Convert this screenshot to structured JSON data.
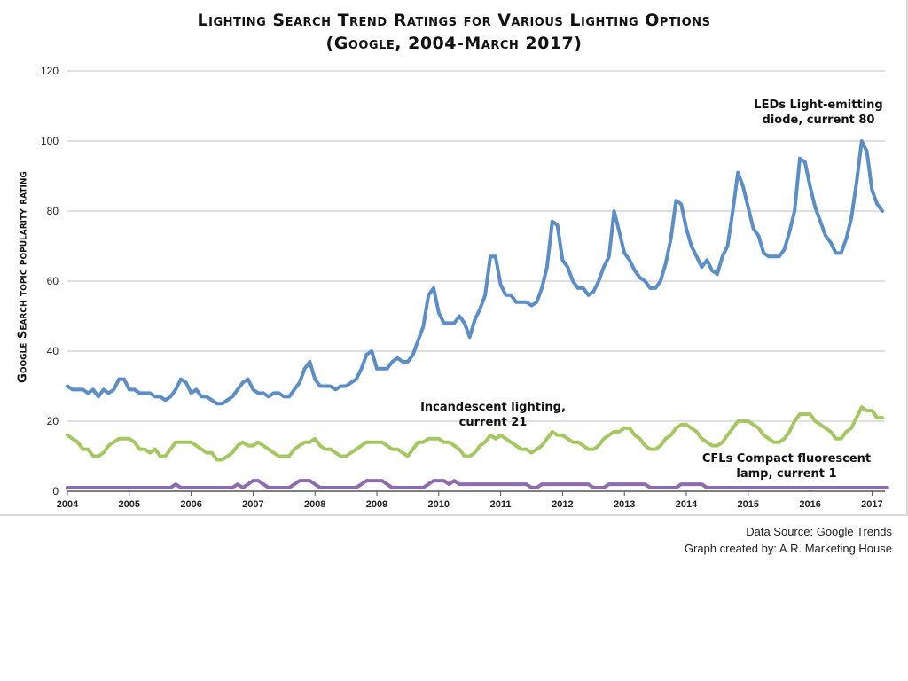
{
  "chart_data": {
    "type": "line",
    "title_line1": "Lighting Search Trend Ratings for Various Lighting Options",
    "title_line2": "(Google, 2004-March 2017)",
    "ylabel": "Google Search topic popularity rating",
    "xlabel": "",
    "ylim": [
      0,
      120
    ],
    "yticks": [
      0,
      20,
      40,
      60,
      80,
      100,
      120
    ],
    "xticks": [
      "2004",
      "2005",
      "2006",
      "2007",
      "2008",
      "2009",
      "2010",
      "2011",
      "2012",
      "2013",
      "2014",
      "2015",
      "2016",
      "2017"
    ],
    "x_start_year": 2004,
    "grid": true,
    "series": [
      {
        "name": "LEDs Light-emitting diode, current 80",
        "label_lines": [
          "LEDs Light-emitting",
          "diode, current 80"
        ],
        "color": "#5b8ec7",
        "values": [
          30,
          29,
          29,
          29,
          28,
          29,
          27,
          29,
          28,
          29,
          32,
          32,
          29,
          29,
          28,
          28,
          28,
          27,
          27,
          26,
          27,
          29,
          32,
          31,
          28,
          29,
          27,
          27,
          26,
          25,
          25,
          26,
          27,
          29,
          31,
          32,
          29,
          28,
          28,
          27,
          28,
          28,
          27,
          27,
          29,
          31,
          35,
          37,
          32,
          30,
          30,
          30,
          29,
          30,
          30,
          31,
          32,
          35,
          39,
          40,
          35,
          35,
          35,
          37,
          38,
          37,
          37,
          39,
          43,
          47,
          56,
          58,
          51,
          48,
          48,
          48,
          50,
          48,
          44,
          49,
          52,
          56,
          67,
          67,
          59,
          56,
          56,
          54,
          54,
          54,
          53,
          54,
          58,
          64,
          77,
          76,
          66,
          64,
          60,
          58,
          58,
          56,
          57,
          60,
          64,
          67,
          80,
          74,
          68,
          66,
          63,
          61,
          60,
          58,
          58,
          60,
          65,
          72,
          83,
          82,
          75,
          70,
          67,
          64,
          66,
          63,
          62,
          67,
          70,
          80,
          91,
          87,
          81,
          75,
          73,
          68,
          67,
          67,
          67,
          69,
          74,
          80,
          95,
          94,
          87,
          81,
          77,
          73,
          71,
          68,
          68,
          72,
          78,
          88,
          100,
          97,
          86,
          82,
          80
        ]
      },
      {
        "name": "Incandescent lighting, current 21",
        "label_lines": [
          "Incandescent lighting,",
          "current 21"
        ],
        "color": "#a5c760",
        "values": [
          16,
          15,
          14,
          12,
          12,
          10,
          10,
          11,
          13,
          14,
          15,
          15,
          15,
          14,
          12,
          12,
          11,
          12,
          10,
          10,
          12,
          14,
          14,
          14,
          14,
          13,
          12,
          11,
          11,
          9,
          9,
          10,
          11,
          13,
          14,
          13,
          13,
          14,
          13,
          12,
          11,
          10,
          10,
          10,
          12,
          13,
          14,
          14,
          15,
          13,
          12,
          12,
          11,
          10,
          10,
          11,
          12,
          13,
          14,
          14,
          14,
          14,
          13,
          12,
          12,
          11,
          10,
          12,
          14,
          14,
          15,
          15,
          15,
          14,
          14,
          13,
          12,
          10,
          10,
          11,
          13,
          14,
          16,
          15,
          16,
          15,
          14,
          13,
          12,
          12,
          11,
          12,
          13,
          15,
          17,
          16,
          16,
          15,
          14,
          14,
          13,
          12,
          12,
          13,
          15,
          16,
          17,
          17,
          18,
          18,
          16,
          15,
          13,
          12,
          12,
          13,
          15,
          16,
          18,
          19,
          19,
          18,
          17,
          15,
          14,
          13,
          13,
          14,
          16,
          18,
          20,
          20,
          20,
          19,
          18,
          16,
          15,
          14,
          14,
          15,
          17,
          20,
          22,
          22,
          22,
          20,
          19,
          18,
          17,
          15,
          15,
          17,
          18,
          21,
          24,
          23,
          23,
          21,
          21
        ]
      },
      {
        "name": "CFLs Compact fluorescent lamp, current 1",
        "label_lines": [
          "CFLs Compact fluorescent",
          "lamp, current 1"
        ],
        "color": "#8e6bb0",
        "values": [
          1,
          1,
          1,
          1,
          1,
          1,
          1,
          1,
          1,
          1,
          1,
          1,
          1,
          1,
          1,
          1,
          1,
          1,
          1,
          1,
          1,
          1,
          1,
          1,
          1,
          1,
          1,
          1,
          1,
          1,
          1,
          1,
          1,
          1,
          1,
          1,
          1,
          1,
          1,
          1,
          1,
          1,
          1,
          1,
          1,
          1,
          1,
          1,
          1,
          1,
          1,
          1,
          1,
          1,
          1,
          1,
          1,
          1,
          1,
          1,
          1,
          1,
          1,
          1,
          1,
          1,
          1,
          1,
          1,
          1,
          1,
          1,
          1,
          1,
          1,
          1,
          1,
          1,
          1,
          1,
          1,
          1,
          1,
          1,
          1,
          1,
          1,
          1,
          1,
          1,
          1,
          1,
          1,
          1,
          1,
          1,
          1,
          1,
          1,
          1,
          1,
          1,
          1,
          1,
          1,
          1,
          1,
          1,
          1,
          1,
          1,
          1,
          1,
          1,
          1,
          1,
          1,
          1,
          1,
          1,
          1,
          1,
          1,
          1,
          1,
          1,
          1,
          1,
          1,
          1,
          1,
          1,
          1,
          1,
          1,
          1,
          1,
          1,
          1,
          1,
          1,
          1,
          1,
          1,
          1,
          1,
          1,
          1,
          1,
          1,
          1,
          1,
          1,
          1,
          1,
          1,
          1,
          1,
          1,
          1
        ],
        "bumps": [
          [
            21,
            2
          ],
          [
            22,
            1
          ],
          [
            33,
            2
          ],
          [
            34,
            1
          ],
          [
            35,
            2
          ],
          [
            36,
            3
          ],
          [
            37,
            3
          ],
          [
            38,
            2
          ],
          [
            44,
            2
          ],
          [
            45,
            3
          ],
          [
            46,
            3
          ],
          [
            47,
            3
          ],
          [
            48,
            2
          ],
          [
            57,
            2
          ],
          [
            58,
            3
          ],
          [
            59,
            3
          ],
          [
            60,
            3
          ],
          [
            61,
            3
          ],
          [
            62,
            2
          ],
          [
            70,
            2
          ],
          [
            71,
            3
          ],
          [
            72,
            3
          ],
          [
            73,
            3
          ],
          [
            74,
            2
          ],
          [
            75,
            3
          ],
          [
            76,
            2
          ],
          [
            77,
            2
          ],
          [
            78,
            2
          ],
          [
            79,
            2
          ],
          [
            80,
            2
          ],
          [
            81,
            2
          ],
          [
            82,
            2
          ],
          [
            83,
            2
          ],
          [
            84,
            2
          ],
          [
            85,
            2
          ],
          [
            86,
            2
          ],
          [
            87,
            2
          ],
          [
            88,
            2
          ],
          [
            89,
            2
          ],
          [
            90,
            1
          ],
          [
            91,
            1
          ],
          [
            92,
            2
          ],
          [
            93,
            2
          ],
          [
            94,
            2
          ],
          [
            95,
            2
          ],
          [
            96,
            2
          ],
          [
            97,
            2
          ],
          [
            98,
            2
          ],
          [
            99,
            2
          ],
          [
            100,
            2
          ],
          [
            101,
            2
          ],
          [
            102,
            1
          ],
          [
            103,
            1
          ],
          [
            104,
            1
          ],
          [
            105,
            2
          ],
          [
            106,
            2
          ],
          [
            107,
            2
          ],
          [
            108,
            2
          ],
          [
            109,
            2
          ],
          [
            110,
            2
          ],
          [
            111,
            2
          ],
          [
            112,
            2
          ],
          [
            113,
            1
          ],
          [
            114,
            1
          ],
          [
            115,
            1
          ],
          [
            116,
            1
          ],
          [
            117,
            1
          ],
          [
            118,
            1
          ],
          [
            119,
            2
          ],
          [
            120,
            2
          ],
          [
            121,
            2
          ],
          [
            122,
            2
          ],
          [
            123,
            2
          ],
          [
            124,
            1
          ]
        ]
      }
    ]
  },
  "source": {
    "line1": "Data Source: Google Trends",
    "line2": "Graph created by: A.R. Marketing House"
  }
}
